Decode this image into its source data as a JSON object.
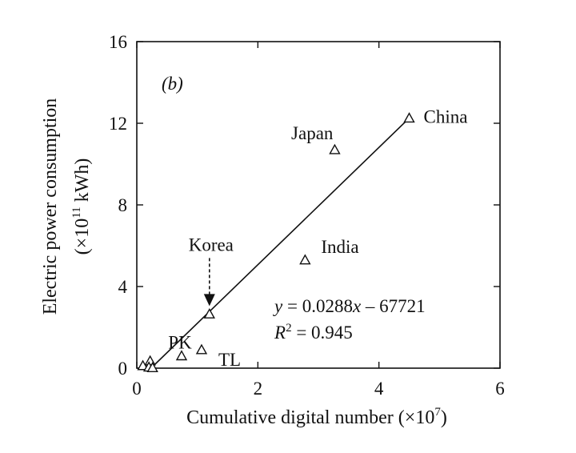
{
  "chart_data": {
    "type": "scatter",
    "panel_label": "(b)",
    "xlabel": {
      "text": "Cumulative digital number (×10",
      "sup": "7",
      "tail": ")"
    },
    "ylabel": {
      "line1": "Electric power consumption",
      "line2": {
        "text": "(×10",
        "sup": "11",
        "tail": " kWh)"
      }
    },
    "xlim": [
      0,
      6
    ],
    "ylim": [
      0,
      16
    ],
    "x_ticks": [
      0,
      2,
      4,
      6
    ],
    "y_ticks": [
      0,
      4,
      8,
      12,
      16
    ],
    "grid": false,
    "points": [
      {
        "label": "China",
        "x": 4.5,
        "y": 12.25
      },
      {
        "label": "Japan",
        "x": 3.27,
        "y": 10.7
      },
      {
        "label": "India",
        "x": 2.78,
        "y": 5.3
      },
      {
        "label": "Korea",
        "x": 1.2,
        "y": 2.65
      },
      {
        "label": "PK",
        "x": 0.74,
        "y": 0.6
      },
      {
        "label": "TL",
        "x": 1.07,
        "y": 0.9
      },
      {
        "label": "",
        "x": 0.22,
        "y": 0.35
      },
      {
        "label": "",
        "x": 0.1,
        "y": 0.12
      },
      {
        "label": "",
        "x": 0.2,
        "y": 0.05
      },
      {
        "label": "",
        "x": 0.26,
        "y": 0.02
      }
    ],
    "fit_line": {
      "x_start": 0.235,
      "x_end": 4.5
    },
    "annotations": {
      "equation": {
        "y": "y",
        "eq": " = 0.0288",
        "x": "x",
        "rest": " – 67721"
      },
      "r2": {
        "r": "R",
        "sup": "2",
        "rest": " = 0.945"
      },
      "arrow_target": "Korea"
    }
  }
}
